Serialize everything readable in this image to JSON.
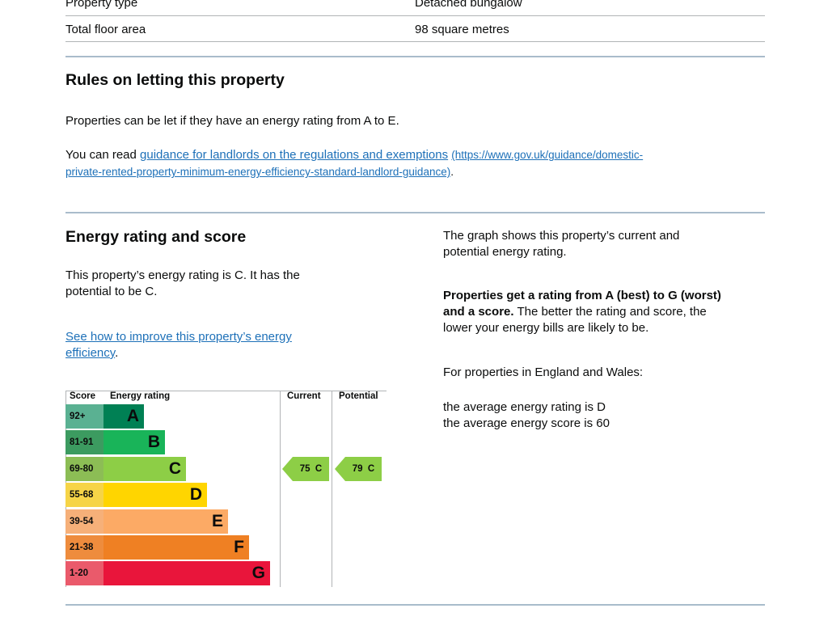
{
  "property_rows": [
    {
      "label": "Property type",
      "value": "Detached bungalow"
    },
    {
      "label": "Total floor area",
      "value": "98 square metres"
    }
  ],
  "letting": {
    "heading": "Rules on letting this property",
    "paragraph": "Properties can be let if they have an energy rating from A to E.",
    "read_prefix": "You can read ",
    "link_text": "guidance for landlords on the regulations and exemptions",
    "link_url_line1": "(https://www.gov.uk/guidance/domestic-",
    "link_url_line2": "private-rented-property-minimum-energy-efficiency-standard-landlord-guidance)",
    "link_url_end": "."
  },
  "energy": {
    "heading": "Energy rating and score",
    "rating_text_line1": "This property’s energy rating is C. It has the",
    "rating_text_line2": "potential to be C.",
    "improve_link_line1": "See how to improve this property’s energy",
    "improve_link_line2": "efficiency",
    "improve_link_end": ".",
    "graph_text_line1": "The graph shows this property’s current and",
    "graph_text_line2": "potential energy rating.",
    "scale_bold_line1": "Properties get a rating from A (best) to G (worst)",
    "scale_bold_line2": "and a score.",
    "scale_rest_line2": " The better the rating and score, the",
    "scale_rest_line3": "lower your energy bills are likely to be.",
    "region_text": "For properties in England and Wales:",
    "average_rating": "the average energy rating is D",
    "average_score": "the average energy score is 60"
  },
  "chart_data": {
    "type": "table",
    "headers": {
      "score": "Score",
      "rating": "Energy rating",
      "current": "Current",
      "potential": "Potential"
    },
    "bands": [
      {
        "range": "92+",
        "letter": "A",
        "color": "#008054",
        "score_bg": "#5ab192"
      },
      {
        "range": "81-91",
        "letter": "B",
        "color": "#19b459",
        "score_bg": "#3c9b60"
      },
      {
        "range": "69-80",
        "letter": "C",
        "color": "#8dce46",
        "score_bg": "#8cbd55"
      },
      {
        "range": "55-68",
        "letter": "D",
        "color": "#ffd500",
        "score_bg": "#f6d447"
      },
      {
        "range": "39-54",
        "letter": "E",
        "color": "#fcaa65",
        "score_bg": "#f6b079"
      },
      {
        "range": "21-38",
        "letter": "F",
        "color": "#ef8023",
        "score_bg": "#ee8c3d"
      },
      {
        "range": "1-20",
        "letter": "G",
        "color": "#e9153b",
        "score_bg": "#ea5a6b"
      }
    ],
    "current": {
      "score": 75,
      "letter": "C",
      "label": "75  C"
    },
    "potential": {
      "score": 79,
      "letter": "C",
      "label": "79  C"
    }
  }
}
